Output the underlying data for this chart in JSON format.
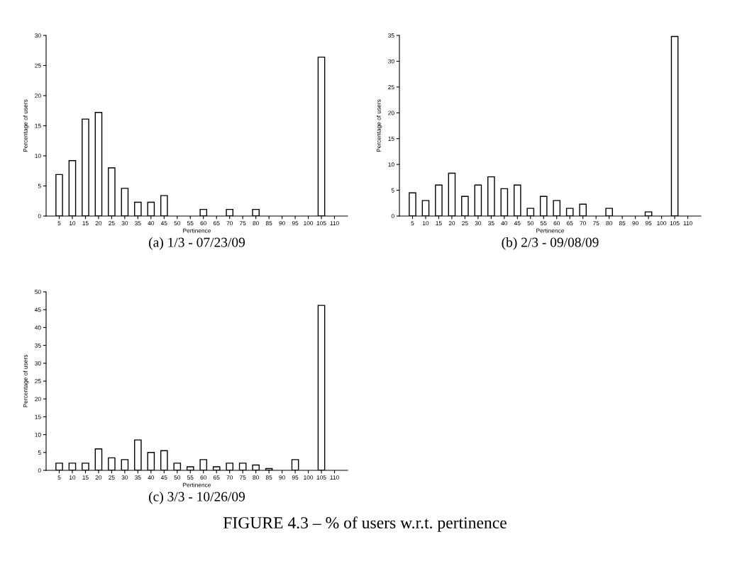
{
  "chart_data": [
    {
      "type": "bar",
      "title": "(a) 1/3 - 07/23/09",
      "xlabel": "Pertinence",
      "ylabel": "Percentage of users",
      "categories": [
        "5",
        "10",
        "15",
        "20",
        "25",
        "30",
        "35",
        "40",
        "45",
        "50",
        "55",
        "60",
        "65",
        "70",
        "75",
        "80",
        "85",
        "90",
        "95",
        "100",
        "105",
        "110"
      ],
      "color": "#ffffff",
      "values": [
        6.9,
        9.2,
        16.1,
        17.2,
        8.0,
        4.6,
        2.3,
        2.3,
        3.4,
        0,
        0,
        1.1,
        0,
        1.1,
        0,
        1.1,
        0,
        0,
        0,
        0,
        26.4,
        0
      ],
      "ylim": [
        0,
        30
      ],
      "yticks": [
        0,
        5,
        10,
        15,
        20,
        25,
        30
      ],
      "grid": false
    },
    {
      "type": "bar",
      "title": "(b) 2/3 - 09/08/09",
      "xlabel": "Pertinence",
      "ylabel": "Percentage of users",
      "categories": [
        "5",
        "10",
        "15",
        "20",
        "25",
        "30",
        "35",
        "40",
        "45",
        "50",
        "55",
        "60",
        "65",
        "70",
        "75",
        "80",
        "85",
        "90",
        "95",
        "100",
        "105",
        "110"
      ],
      "color": "#ffffff",
      "values": [
        4.5,
        3.0,
        6.0,
        8.3,
        3.8,
        6.0,
        7.6,
        5.3,
        6.0,
        1.5,
        3.8,
        3.0,
        1.5,
        2.3,
        0,
        1.5,
        0,
        0,
        0.8,
        0,
        34.8,
        0
      ],
      "ylim": [
        0,
        35
      ],
      "yticks": [
        0,
        5,
        10,
        15,
        20,
        25,
        30,
        35
      ],
      "grid": false
    },
    {
      "type": "bar",
      "title": "(c) 3/3 - 10/26/09",
      "xlabel": "Pertinence",
      "ylabel": "Percentage of users",
      "categories": [
        "5",
        "10",
        "15",
        "20",
        "25",
        "30",
        "35",
        "40",
        "45",
        "50",
        "55",
        "60",
        "65",
        "70",
        "75",
        "80",
        "85",
        "90",
        "95",
        "100",
        "105",
        "110"
      ],
      "color": "#ffffff",
      "values": [
        2,
        2,
        2,
        6,
        3.5,
        3,
        8.5,
        5,
        5.5,
        2,
        1,
        3,
        1,
        2,
        2,
        1.5,
        0.5,
        0,
        3,
        0,
        46.2,
        0
      ],
      "ylim": [
        0,
        50
      ],
      "yticks": [
        0,
        5,
        10,
        15,
        20,
        25,
        30,
        35,
        40,
        45,
        50
      ],
      "grid": false,
      "annotations": [
        "FIGURE 4.3 – % of users w.r.t. pertinence"
      ]
    }
  ]
}
